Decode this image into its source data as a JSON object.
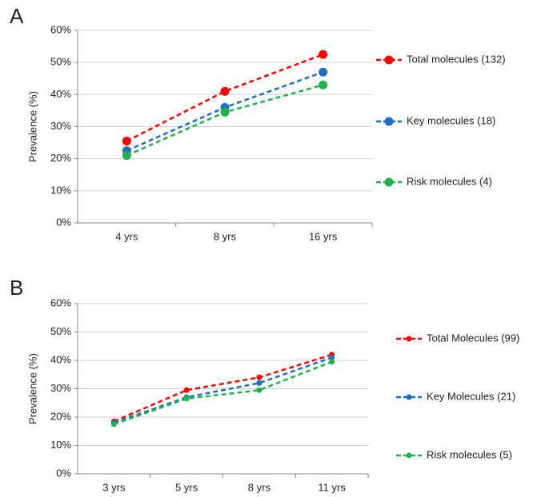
{
  "chart_data": [
    {
      "type": "line",
      "panel": "A",
      "y_label": "Prevalence (%)",
      "categories": [
        "4 yrs",
        "8 yrs",
        "16 yrs"
      ],
      "series": [
        {
          "name": "Total molecules (132)",
          "color": "#ff0000",
          "values": [
            25.5,
            41,
            52.5
          ]
        },
        {
          "name": "Key molecules (18)",
          "color": "#1f6fc0",
          "values": [
            22.5,
            36,
            47
          ]
        },
        {
          "name": "Risk molecules (4)",
          "color": "#22b14c",
          "values": [
            21,
            34.5,
            43
          ]
        }
      ],
      "ylim": [
        0,
        60
      ],
      "yticks": [
        {
          "value": 0,
          "label": "0%"
        },
        {
          "value": 10,
          "label": "10%"
        },
        {
          "value": 20,
          "label": "20%"
        },
        {
          "value": 30,
          "label": "30%"
        },
        {
          "value": 40,
          "label": "40%"
        },
        {
          "value": 50,
          "label": "50%"
        },
        {
          "value": 60,
          "label": "60%"
        }
      ],
      "grid": true,
      "legend": "right"
    },
    {
      "type": "line",
      "panel": "B",
      "y_label": "Prevalence (%)",
      "categories": [
        "3 yrs",
        "5 yrs",
        "8 yrs",
        "11 yrs"
      ],
      "series": [
        {
          "name": "Total Molecules (99)",
          "color": "#ff0000",
          "values": [
            18.5,
            29.5,
            34,
            42
          ]
        },
        {
          "name": "Key Molecules (21)",
          "color": "#1f6fc0",
          "values": [
            18,
            27,
            32,
            41
          ]
        },
        {
          "name": "Risk molecules (5)",
          "color": "#22b14c",
          "values": [
            17.5,
            26.5,
            29.5,
            39.5
          ]
        }
      ],
      "ylim": [
        0,
        60
      ],
      "yticks": [
        {
          "value": 0,
          "label": "0%"
        },
        {
          "value": 10,
          "label": "10%"
        },
        {
          "value": 20,
          "label": "20%"
        },
        {
          "value": 30,
          "label": "30%"
        },
        {
          "value": 40,
          "label": "40%"
        },
        {
          "value": 50,
          "label": "50%"
        },
        {
          "value": 60,
          "label": "60%"
        }
      ],
      "grid": true,
      "legend": "right"
    }
  ]
}
